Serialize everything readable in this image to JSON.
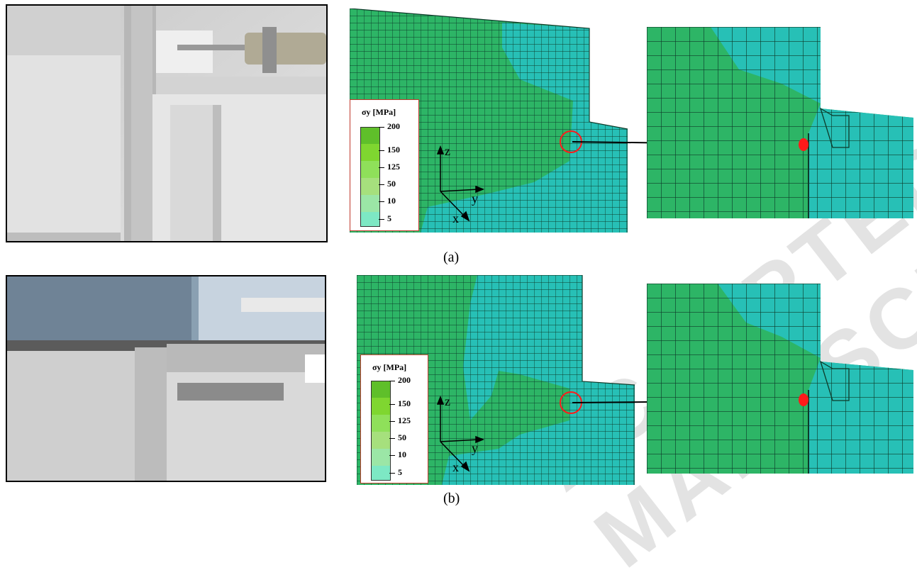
{
  "captions": {
    "a": "(a)",
    "b": "(b)"
  },
  "legend": {
    "title": "σy [MPa]",
    "levels": [
      {
        "label": "200",
        "color": "#5fbf2a"
      },
      {
        "label": "150",
        "color": "#7fd630"
      },
      {
        "label": "125",
        "color": "#8fe05a"
      },
      {
        "label": "50",
        "color": "#a6e07d"
      },
      {
        "label": "10",
        "color": "#9be6a6"
      },
      {
        "label": "5",
        "color": "#7de8c4"
      }
    ]
  },
  "axes": {
    "z": "z",
    "y": "y",
    "x": "x"
  },
  "colors": {
    "mesh_green": "#2db566",
    "mesh_cyan": "#27c0b6",
    "hotspot": "#ff1a1a",
    "legend_border": "#c0392b"
  },
  "watermark": "ACCEPTED MANUSCRIPT"
}
